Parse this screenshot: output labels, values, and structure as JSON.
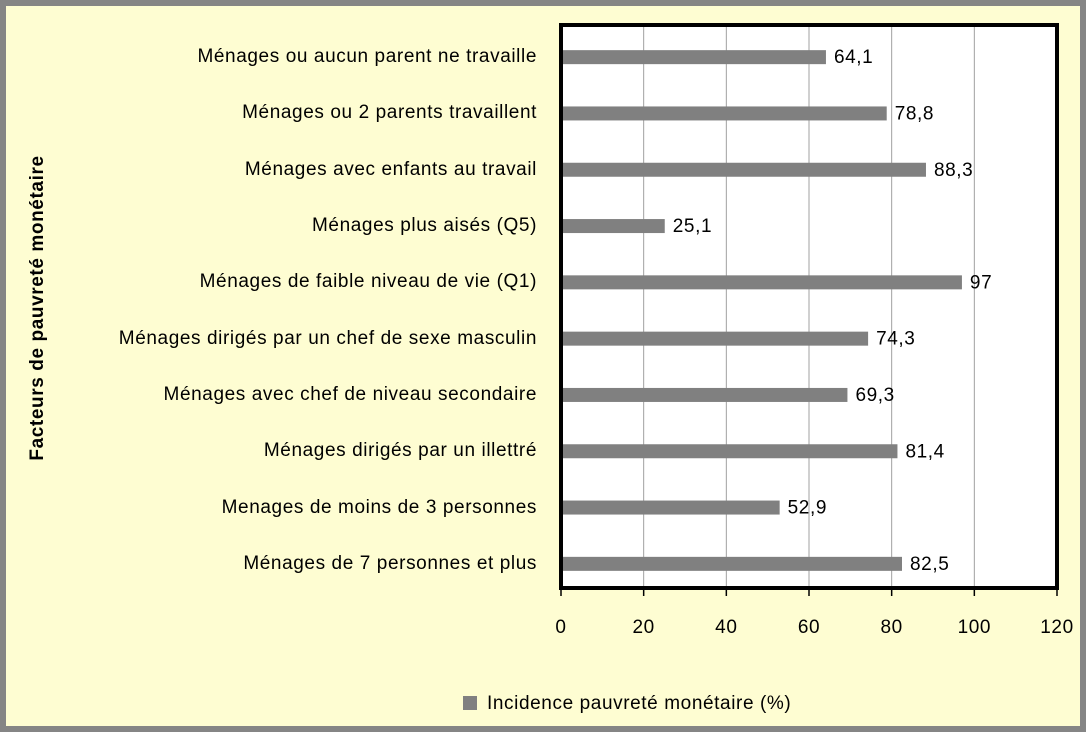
{
  "chart_data": {
    "type": "barh",
    "ylabel": "Facteurs de pauvreté monétaire",
    "categories": [
      "Ménages ou aucun parent ne travaille",
      "Ménages ou 2 parents travaillent",
      "Ménages avec enfants au travail",
      "Ménages plus aisés (Q5)",
      "Ménages de faible niveau de vie (Q1)",
      "Ménages dirigés par un chef de sexe masculin",
      "Ménages avec chef de niveau secondaire",
      "Ménages dirigés par un illettré",
      "Menages de moins de 3 personnes",
      "Ménages de 7 personnes et plus"
    ],
    "series": [
      {
        "name": "Incidence pauvreté monétaire (%)",
        "color": "#808080",
        "values": [
          64.1,
          78.8,
          88.3,
          25.1,
          97,
          74.3,
          69.3,
          81.4,
          52.9,
          82.5
        ],
        "value_labels": [
          "64,1",
          "78,8",
          "88,3",
          "25,1",
          "97",
          "74,3",
          "69,3",
          "81,4",
          "52,9",
          "82,5"
        ]
      }
    ],
    "xlim": [
      0,
      120
    ],
    "xticks": [
      0,
      20,
      40,
      60,
      80,
      100,
      120
    ],
    "grid": true,
    "legend": "bottom"
  }
}
